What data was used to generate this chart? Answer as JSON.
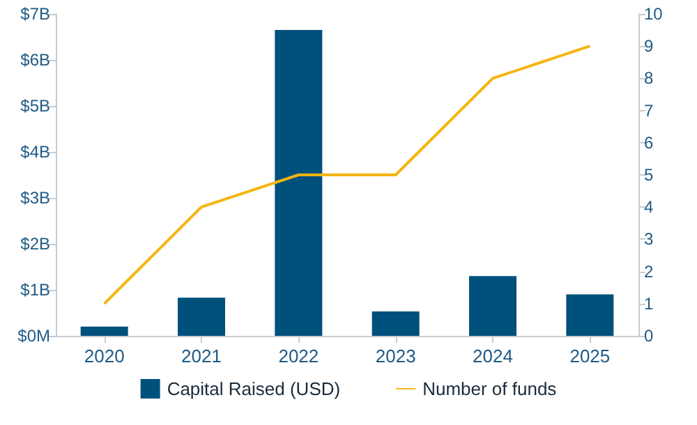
{
  "chart_data": {
    "type": "bar",
    "categories": [
      "2020",
      "2021",
      "2022",
      "2023",
      "2024",
      "2025"
    ],
    "series": [
      {
        "name": "Capital Raised (USD)",
        "color": "#00507c",
        "values": [
          0.2,
          0.83,
          6.65,
          0.53,
          1.3,
          0.9
        ]
      },
      {
        "name": "Number of funds",
        "type": "line",
        "axis": "y2",
        "color": "#f5b50f",
        "values": [
          1,
          4,
          5,
          5,
          8,
          9
        ]
      }
    ],
    "ylim": [
      0,
      7
    ],
    "yticks": [
      {
        "value": 0,
        "label": "$0M"
      },
      {
        "value": 1,
        "label": "$1B"
      },
      {
        "value": 2,
        "label": "$2B"
      },
      {
        "value": 3,
        "label": "$3B"
      },
      {
        "value": 4,
        "label": "$4B"
      },
      {
        "value": 5,
        "label": "$5B"
      },
      {
        "value": 6,
        "label": "$6B"
      },
      {
        "value": 7,
        "label": "$7B"
      }
    ],
    "y2lim": [
      0,
      10
    ],
    "y2ticks": [
      0,
      1,
      2,
      3,
      4,
      5,
      6,
      7,
      8,
      9,
      10
    ],
    "grid": false,
    "legend": "bottom",
    "marker": "none"
  }
}
